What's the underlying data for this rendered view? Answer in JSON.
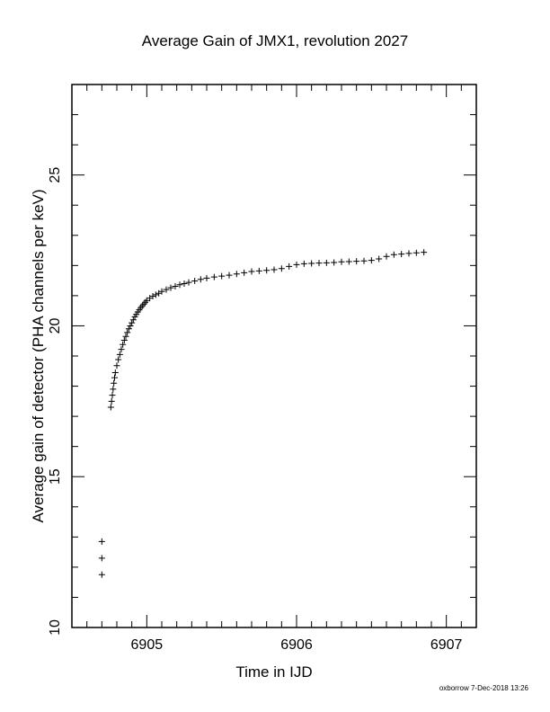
{
  "chart_data": {
    "type": "scatter",
    "title": "Average Gain of JMX1, revolution 2027",
    "xlabel": "Time in IJD",
    "ylabel": "Average gain of detector (PHA channels per keV)",
    "xlim": [
      6904.5,
      6907.2
    ],
    "ylim": [
      10,
      28
    ],
    "xticks": [
      6905,
      6906,
      6907
    ],
    "yticks": [
      10,
      15,
      20,
      25
    ],
    "marker": "plus",
    "grid": false,
    "series": [
      {
        "points": [
          [
            6904.7,
            12.85
          ],
          [
            6904.7,
            12.3
          ],
          [
            6904.7,
            11.75
          ],
          [
            6904.76,
            17.3
          ],
          [
            6904.765,
            17.5
          ],
          [
            6904.77,
            17.7
          ],
          [
            6904.775,
            17.9
          ],
          [
            6904.78,
            18.1
          ],
          [
            6904.785,
            18.28
          ],
          [
            6904.79,
            18.45
          ],
          [
            6904.8,
            18.68
          ],
          [
            6904.81,
            18.88
          ],
          [
            6904.82,
            19.05
          ],
          [
            6904.83,
            19.22
          ],
          [
            6904.84,
            19.38
          ],
          [
            6904.85,
            19.52
          ],
          [
            6904.86,
            19.65
          ],
          [
            6904.87,
            19.78
          ],
          [
            6904.88,
            19.9
          ],
          [
            6904.89,
            20.0
          ],
          [
            6904.9,
            20.1
          ],
          [
            6904.91,
            20.2
          ],
          [
            6904.92,
            20.3
          ],
          [
            6904.93,
            20.38
          ],
          [
            6904.94,
            20.46
          ],
          [
            6904.95,
            20.53
          ],
          [
            6904.96,
            20.6
          ],
          [
            6904.97,
            20.66
          ],
          [
            6904.98,
            20.72
          ],
          [
            6904.99,
            20.78
          ],
          [
            6905.0,
            20.84
          ],
          [
            6905.02,
            20.92
          ],
          [
            6905.04,
            20.98
          ],
          [
            6905.06,
            21.03
          ],
          [
            6905.08,
            21.08
          ],
          [
            6905.1,
            21.14
          ],
          [
            6905.13,
            21.2
          ],
          [
            6905.16,
            21.26
          ],
          [
            6905.19,
            21.31
          ],
          [
            6905.22,
            21.36
          ],
          [
            6905.25,
            21.4
          ],
          [
            6905.28,
            21.44
          ],
          [
            6905.32,
            21.49
          ],
          [
            6905.36,
            21.54
          ],
          [
            6905.4,
            21.58
          ],
          [
            6905.45,
            21.62
          ],
          [
            6905.5,
            21.65
          ],
          [
            6905.55,
            21.68
          ],
          [
            6905.6,
            21.72
          ],
          [
            6905.65,
            21.76
          ],
          [
            6905.7,
            21.8
          ],
          [
            6905.75,
            21.82
          ],
          [
            6905.8,
            21.84
          ],
          [
            6905.85,
            21.86
          ],
          [
            6905.9,
            21.9
          ],
          [
            6905.95,
            21.97
          ],
          [
            6906.0,
            22.03
          ],
          [
            6906.05,
            22.06
          ],
          [
            6906.1,
            22.07
          ],
          [
            6906.15,
            22.08
          ],
          [
            6906.2,
            22.09
          ],
          [
            6906.25,
            22.1
          ],
          [
            6906.3,
            22.12
          ],
          [
            6906.35,
            22.13
          ],
          [
            6906.4,
            22.14
          ],
          [
            6906.45,
            22.15
          ],
          [
            6906.5,
            22.17
          ],
          [
            6906.55,
            22.22
          ],
          [
            6906.6,
            22.3
          ],
          [
            6906.65,
            22.36
          ],
          [
            6906.7,
            22.38
          ],
          [
            6906.75,
            22.4
          ],
          [
            6906.8,
            22.42
          ],
          [
            6906.85,
            22.44
          ]
        ]
      }
    ]
  },
  "footer": {
    "credit": "oxborrow  7-Dec-2018 13:26"
  }
}
